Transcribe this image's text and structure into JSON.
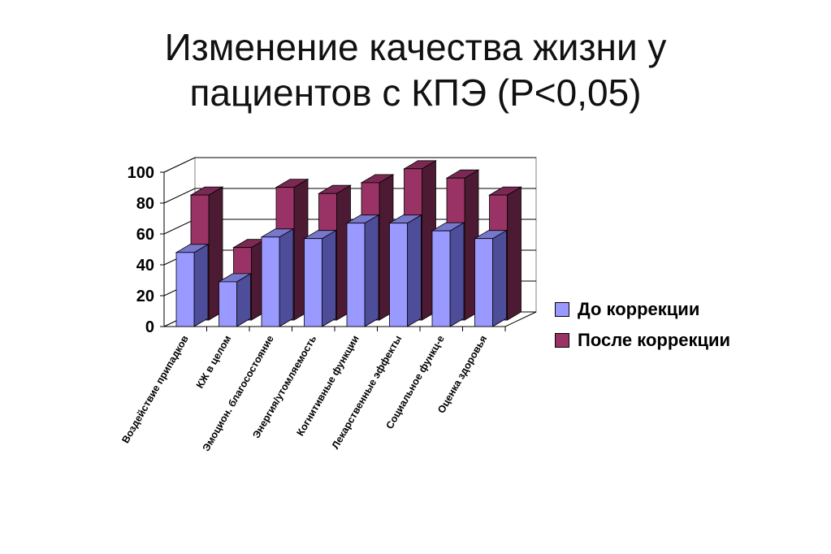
{
  "title": {
    "line1": "Изменение качества жизни у",
    "line2": "пациентов с КПЭ (Р<0,05)"
  },
  "colors": {
    "before_front": "#9999ff",
    "before_side": "#4d4d99",
    "before_top": "#7777cc",
    "after_front": "#993366",
    "after_side": "#4d1a33",
    "after_top": "#7a2952"
  },
  "chart_data": {
    "type": "bar",
    "style": "3d-clustered",
    "title": "",
    "xlabel": "",
    "ylabel": "",
    "ylim": [
      0,
      100
    ],
    "yticks": [
      "0",
      "20",
      "40",
      "60",
      "80",
      "100"
    ],
    "grid": true,
    "legend_position": "right",
    "categories": [
      "Воздействие припадков",
      "КЖ в целом",
      "Эмоцион. благосостояние",
      "Энергия/утомляемость",
      "Когнитивные функции",
      "Лекарственные эффекты",
      "Социальное функц-е",
      "Оценка здоровья"
    ],
    "series": [
      {
        "name": "До коррекции",
        "values": [
          48,
          29,
          58,
          57,
          67,
          67,
          62,
          57
        ]
      },
      {
        "name": "После коррекции",
        "values": [
          81,
          47,
          86,
          82,
          89,
          98,
          92,
          81
        ]
      }
    ]
  }
}
